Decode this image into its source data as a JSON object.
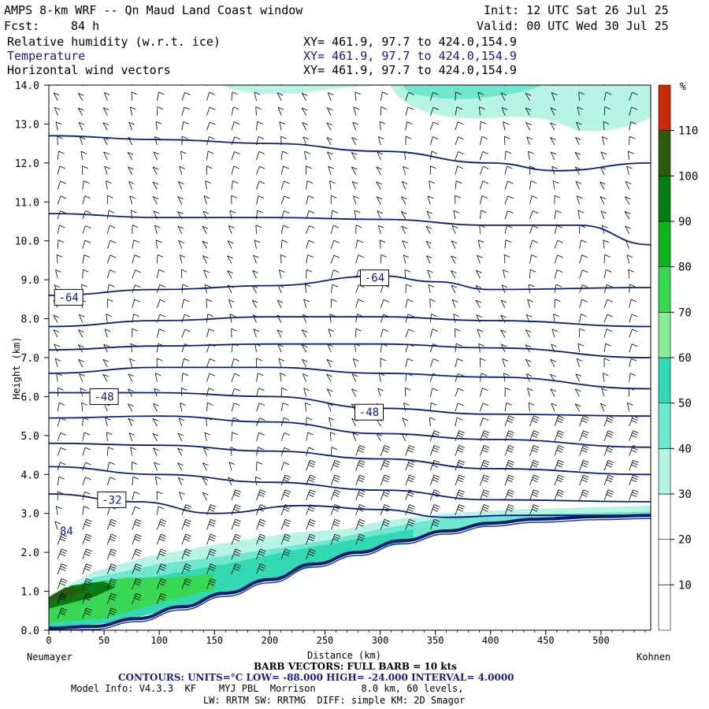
{
  "header": {
    "title": "AMPS 8-km WRF -- Qn Maud Land Coast window",
    "init": "Init: 12 UTC Sat 26 Jul 25",
    "fcst_label": "Fcst:",
    "fcst_value": "84 h",
    "valid": "Valid: 00 UTC Wed 30 Jul 25",
    "fields": [
      {
        "name": "Relative humidity (w.r.t. ice)",
        "xy": "XY= 461.9, 97.7 to 424.0,154.9"
      },
      {
        "name": "Temperature",
        "xy": "XY= 461.9, 97.7 to 424.0,154.9"
      },
      {
        "name": "Horizontal wind vectors",
        "xy": "XY= 461.9, 97.7 to 424.0,154.9"
      }
    ]
  },
  "chart_data": {
    "type": "cross-section",
    "xlabel": "Distance (km)",
    "ylabel": "Height (km)",
    "xlim": [
      0,
      545
    ],
    "ylim": [
      0,
      14
    ],
    "x_ticks": [
      "0",
      "50",
      "100",
      "150",
      "200",
      "250",
      "300",
      "350",
      "400",
      "450",
      "500"
    ],
    "y_ticks": [
      "0.0",
      "1.0",
      "2.0",
      "3.0",
      "4.0",
      "5.0",
      "6.0",
      "7.0",
      "8.0",
      "9.0",
      "10.0",
      "11.0",
      "12.0",
      "13.0",
      "14.0"
    ],
    "left_endpoint": "Neumayer",
    "right_endpoint": "Kohnen",
    "terrain_km": [
      [
        0,
        0.05
      ],
      [
        40,
        0.1
      ],
      [
        80,
        0.3
      ],
      [
        120,
        0.6
      ],
      [
        160,
        0.95
      ],
      [
        200,
        1.3
      ],
      [
        240,
        1.7
      ],
      [
        280,
        2.0
      ],
      [
        320,
        2.3
      ],
      [
        360,
        2.55
      ],
      [
        400,
        2.75
      ],
      [
        440,
        2.85
      ],
      [
        500,
        2.92
      ],
      [
        545,
        2.95
      ]
    ],
    "temperature_contours": {
      "units": "°C",
      "labels": [
        {
          "value": "-64",
          "x": 18,
          "y": 8.55
        },
        {
          "value": "-64",
          "x": 295,
          "y": 9.05
        },
        {
          "value": "-48",
          "x": 50,
          "y": 6.0
        },
        {
          "value": "-48",
          "x": 290,
          "y": 5.6
        },
        {
          "value": "-32",
          "x": 57,
          "y": 3.35
        }
      ],
      "isotherms": [
        [
          [
            0,
            12.7
          ],
          [
            100,
            12.6
          ],
          [
            200,
            12.5
          ],
          [
            300,
            12.3
          ],
          [
            400,
            12.0
          ],
          [
            460,
            11.8
          ],
          [
            545,
            12.0
          ]
        ],
        [
          [
            0,
            10.7
          ],
          [
            100,
            10.6
          ],
          [
            200,
            10.6
          ],
          [
            300,
            10.55
          ],
          [
            400,
            10.4
          ],
          [
            480,
            10.4
          ],
          [
            545,
            9.9
          ]
        ],
        [
          [
            0,
            8.6
          ],
          [
            100,
            8.75
          ],
          [
            200,
            8.85
          ],
          [
            300,
            9.1
          ],
          [
            350,
            8.95
          ],
          [
            400,
            8.75
          ],
          [
            545,
            8.8
          ]
        ],
        [
          [
            0,
            7.8
          ],
          [
            100,
            7.95
          ],
          [
            200,
            8.05
          ],
          [
            300,
            8.05
          ],
          [
            400,
            7.95
          ],
          [
            545,
            7.8
          ]
        ],
        [
          [
            0,
            7.2
          ],
          [
            100,
            7.3
          ],
          [
            200,
            7.35
          ],
          [
            300,
            7.35
          ],
          [
            400,
            7.25
          ],
          [
            545,
            7.0
          ]
        ],
        [
          [
            0,
            6.6
          ],
          [
            100,
            6.75
          ],
          [
            200,
            6.75
          ],
          [
            300,
            6.6
          ],
          [
            400,
            6.5
          ],
          [
            545,
            6.2
          ]
        ],
        [
          [
            0,
            6.1
          ],
          [
            100,
            6.1
          ],
          [
            200,
            6.0
          ],
          [
            300,
            5.7
          ],
          [
            400,
            5.55
          ],
          [
            545,
            5.5
          ]
        ],
        [
          [
            0,
            5.45
          ],
          [
            100,
            5.5
          ],
          [
            200,
            5.35
          ],
          [
            300,
            5.05
          ],
          [
            400,
            4.9
          ],
          [
            545,
            4.7
          ]
        ],
        [
          [
            0,
            4.8
          ],
          [
            100,
            4.75
          ],
          [
            200,
            4.6
          ],
          [
            300,
            4.4
          ],
          [
            400,
            4.15
          ],
          [
            545,
            4.0
          ]
        ],
        [
          [
            0,
            4.2
          ],
          [
            100,
            4.0
          ],
          [
            200,
            3.8
          ],
          [
            300,
            3.6
          ],
          [
            400,
            3.35
          ],
          [
            545,
            3.3
          ]
        ],
        [
          [
            0,
            3.5
          ],
          [
            80,
            3.3
          ],
          [
            150,
            3.0
          ],
          [
            230,
            3.2
          ],
          [
            300,
            3.1
          ],
          [
            360,
            2.9
          ],
          [
            420,
            2.95
          ],
          [
            545,
            2.95
          ]
        ]
      ]
    },
    "rh_colorbar": {
      "unit": "%",
      "labels": [
        "10",
        "20",
        "30",
        "40",
        "50",
        "60",
        "70",
        "80",
        "90",
        "100",
        "110"
      ],
      "colors": [
        "#ffffff",
        "#ffffff",
        "#ffffff",
        "#b8f4e6",
        "#6ee8cf",
        "#33d9b4",
        "#8ee89a",
        "#38d854",
        "#0fb51f",
        "#0a7a14",
        "#2c5a0e",
        "#c82a0a"
      ]
    },
    "rh_regions": [
      {
        "level": "30-40",
        "color": "#b8f4e6",
        "polygon": [
          [
            0,
            0.9
          ],
          [
            40,
            1.5
          ],
          [
            90,
            1.9
          ],
          [
            150,
            2.2
          ],
          [
            220,
            2.5
          ],
          [
            270,
            2.6
          ],
          [
            300,
            2.8
          ],
          [
            360,
            3.0
          ],
          [
            420,
            3.1
          ],
          [
            545,
            3.2
          ],
          [
            545,
            2.95
          ],
          [
            440,
            2.85
          ],
          [
            360,
            2.55
          ],
          [
            280,
            2.0
          ],
          [
            200,
            1.3
          ],
          [
            120,
            0.6
          ],
          [
            60,
            0.2
          ],
          [
            0,
            0.05
          ]
        ]
      },
      {
        "level": "40-50",
        "color": "#6ee8cf",
        "polygon": [
          [
            0,
            0.8
          ],
          [
            40,
            1.35
          ],
          [
            100,
            1.7
          ],
          [
            170,
            1.95
          ],
          [
            250,
            2.3
          ],
          [
            300,
            2.6
          ],
          [
            350,
            2.85
          ],
          [
            400,
            2.95
          ],
          [
            545,
            3.05
          ],
          [
            545,
            2.95
          ],
          [
            440,
            2.85
          ],
          [
            360,
            2.55
          ],
          [
            280,
            2.0
          ],
          [
            200,
            1.3
          ],
          [
            120,
            0.6
          ],
          [
            60,
            0.2
          ],
          [
            0,
            0.05
          ]
        ]
      },
      {
        "level": "60-70",
        "color": "#33d9b4",
        "polygon": [
          [
            0,
            0.5
          ],
          [
            40,
            1.1
          ],
          [
            100,
            1.4
          ],
          [
            160,
            1.7
          ],
          [
            230,
            2.1
          ],
          [
            290,
            2.4
          ],
          [
            330,
            2.6
          ],
          [
            330,
            2.3
          ],
          [
            280,
            2.0
          ],
          [
            200,
            1.3
          ],
          [
            120,
            0.6
          ],
          [
            60,
            0.2
          ],
          [
            0,
            0.05
          ]
        ]
      },
      {
        "level": "70-80",
        "color": "#38d854",
        "polygon": [
          [
            0,
            0.6
          ],
          [
            30,
            1.2
          ],
          [
            70,
            1.35
          ],
          [
            110,
            1.35
          ],
          [
            150,
            1.45
          ],
          [
            150,
            1.05
          ],
          [
            100,
            0.7
          ],
          [
            50,
            0.3
          ],
          [
            0,
            0.2
          ]
        ]
      },
      {
        "level": "90-100",
        "color": "#0a7a14",
        "polygon": [
          [
            0,
            0.75
          ],
          [
            20,
            1.15
          ],
          [
            50,
            1.25
          ],
          [
            60,
            1.1
          ],
          [
            40,
            0.85
          ],
          [
            0,
            0.55
          ]
        ]
      },
      {
        "level": "100-110",
        "color": "#2c5a0e",
        "polygon": [
          [
            0,
            0.85
          ],
          [
            15,
            1.1
          ],
          [
            35,
            1.05
          ],
          [
            25,
            0.9
          ],
          [
            0,
            0.75
          ]
        ]
      }
    ],
    "rh_contour_label": {
      "value": "84",
      "x": 16,
      "y": 2.45
    }
  },
  "footer": {
    "barb_note": "BARB VECTORS: FULL BARB = 10 kts",
    "contours": "CONTOURS: UNITS=°C LOW= -88.000 HIGH= -24.000 INTERVAL= 4.0000",
    "model_info": "Model Info: V4.3.3  KF    MYJ PBL  Morrison        8.0 km, 60 levels,",
    "physics": "LW: RRTM SW: RRTMG  DIFF: simple KM: 2D Smagor"
  },
  "colors": {
    "contour": "#0b1a86",
    "header_blue": "#1a1a8c",
    "terrain": "#001a6e"
  }
}
